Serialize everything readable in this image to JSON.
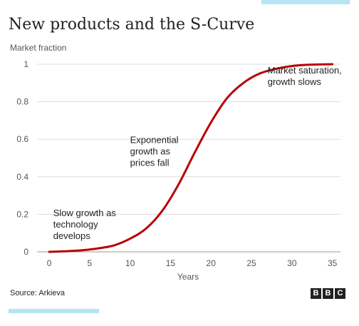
{
  "page": {
    "title": "New products and the S-Curve",
    "source": "Source: Arkieva",
    "logo": [
      "B",
      "B",
      "C"
    ]
  },
  "colors": {
    "series": "#b80000",
    "grid": "#dddddd",
    "axis_text": "#555555",
    "annotation_text": "#222222",
    "accent_bar": "#b5e4f5"
  },
  "chart_data": {
    "type": "line",
    "title": "New products and the S-Curve",
    "ylabel": "Market fraction",
    "xlabel": "Years",
    "xlim": [
      -1.5,
      36
    ],
    "ylim": [
      0,
      1
    ],
    "xticks": [
      0,
      5,
      10,
      15,
      20,
      25,
      30,
      35
    ],
    "yticks": [
      0,
      0.2,
      0.4,
      0.6,
      0.8,
      1
    ],
    "ytick_labels": [
      "0",
      "0.2",
      "0.4",
      "0.6",
      "0.8",
      "1"
    ],
    "grid": "horizontal",
    "series": [
      {
        "x": [
          0,
          2,
          4,
          6,
          8,
          10,
          12,
          14,
          16,
          18,
          20,
          22,
          24,
          26,
          28,
          30,
          32,
          35
        ],
        "y": [
          0.0,
          0.003,
          0.008,
          0.018,
          0.034,
          0.07,
          0.125,
          0.22,
          0.36,
          0.53,
          0.69,
          0.82,
          0.9,
          0.95,
          0.975,
          0.99,
          0.997,
          1.0
        ]
      }
    ],
    "annotations": [
      {
        "lines": [
          "Slow growth as",
          "technology",
          "develops"
        ],
        "x": 0.5,
        "y": 0.19
      },
      {
        "lines": [
          "Exponential",
          "growth as",
          "prices fall"
        ],
        "x": 10,
        "y": 0.58
      },
      {
        "lines": [
          "Market saturation,",
          "growth slows"
        ],
        "x": 27,
        "y": 0.95
      }
    ]
  }
}
